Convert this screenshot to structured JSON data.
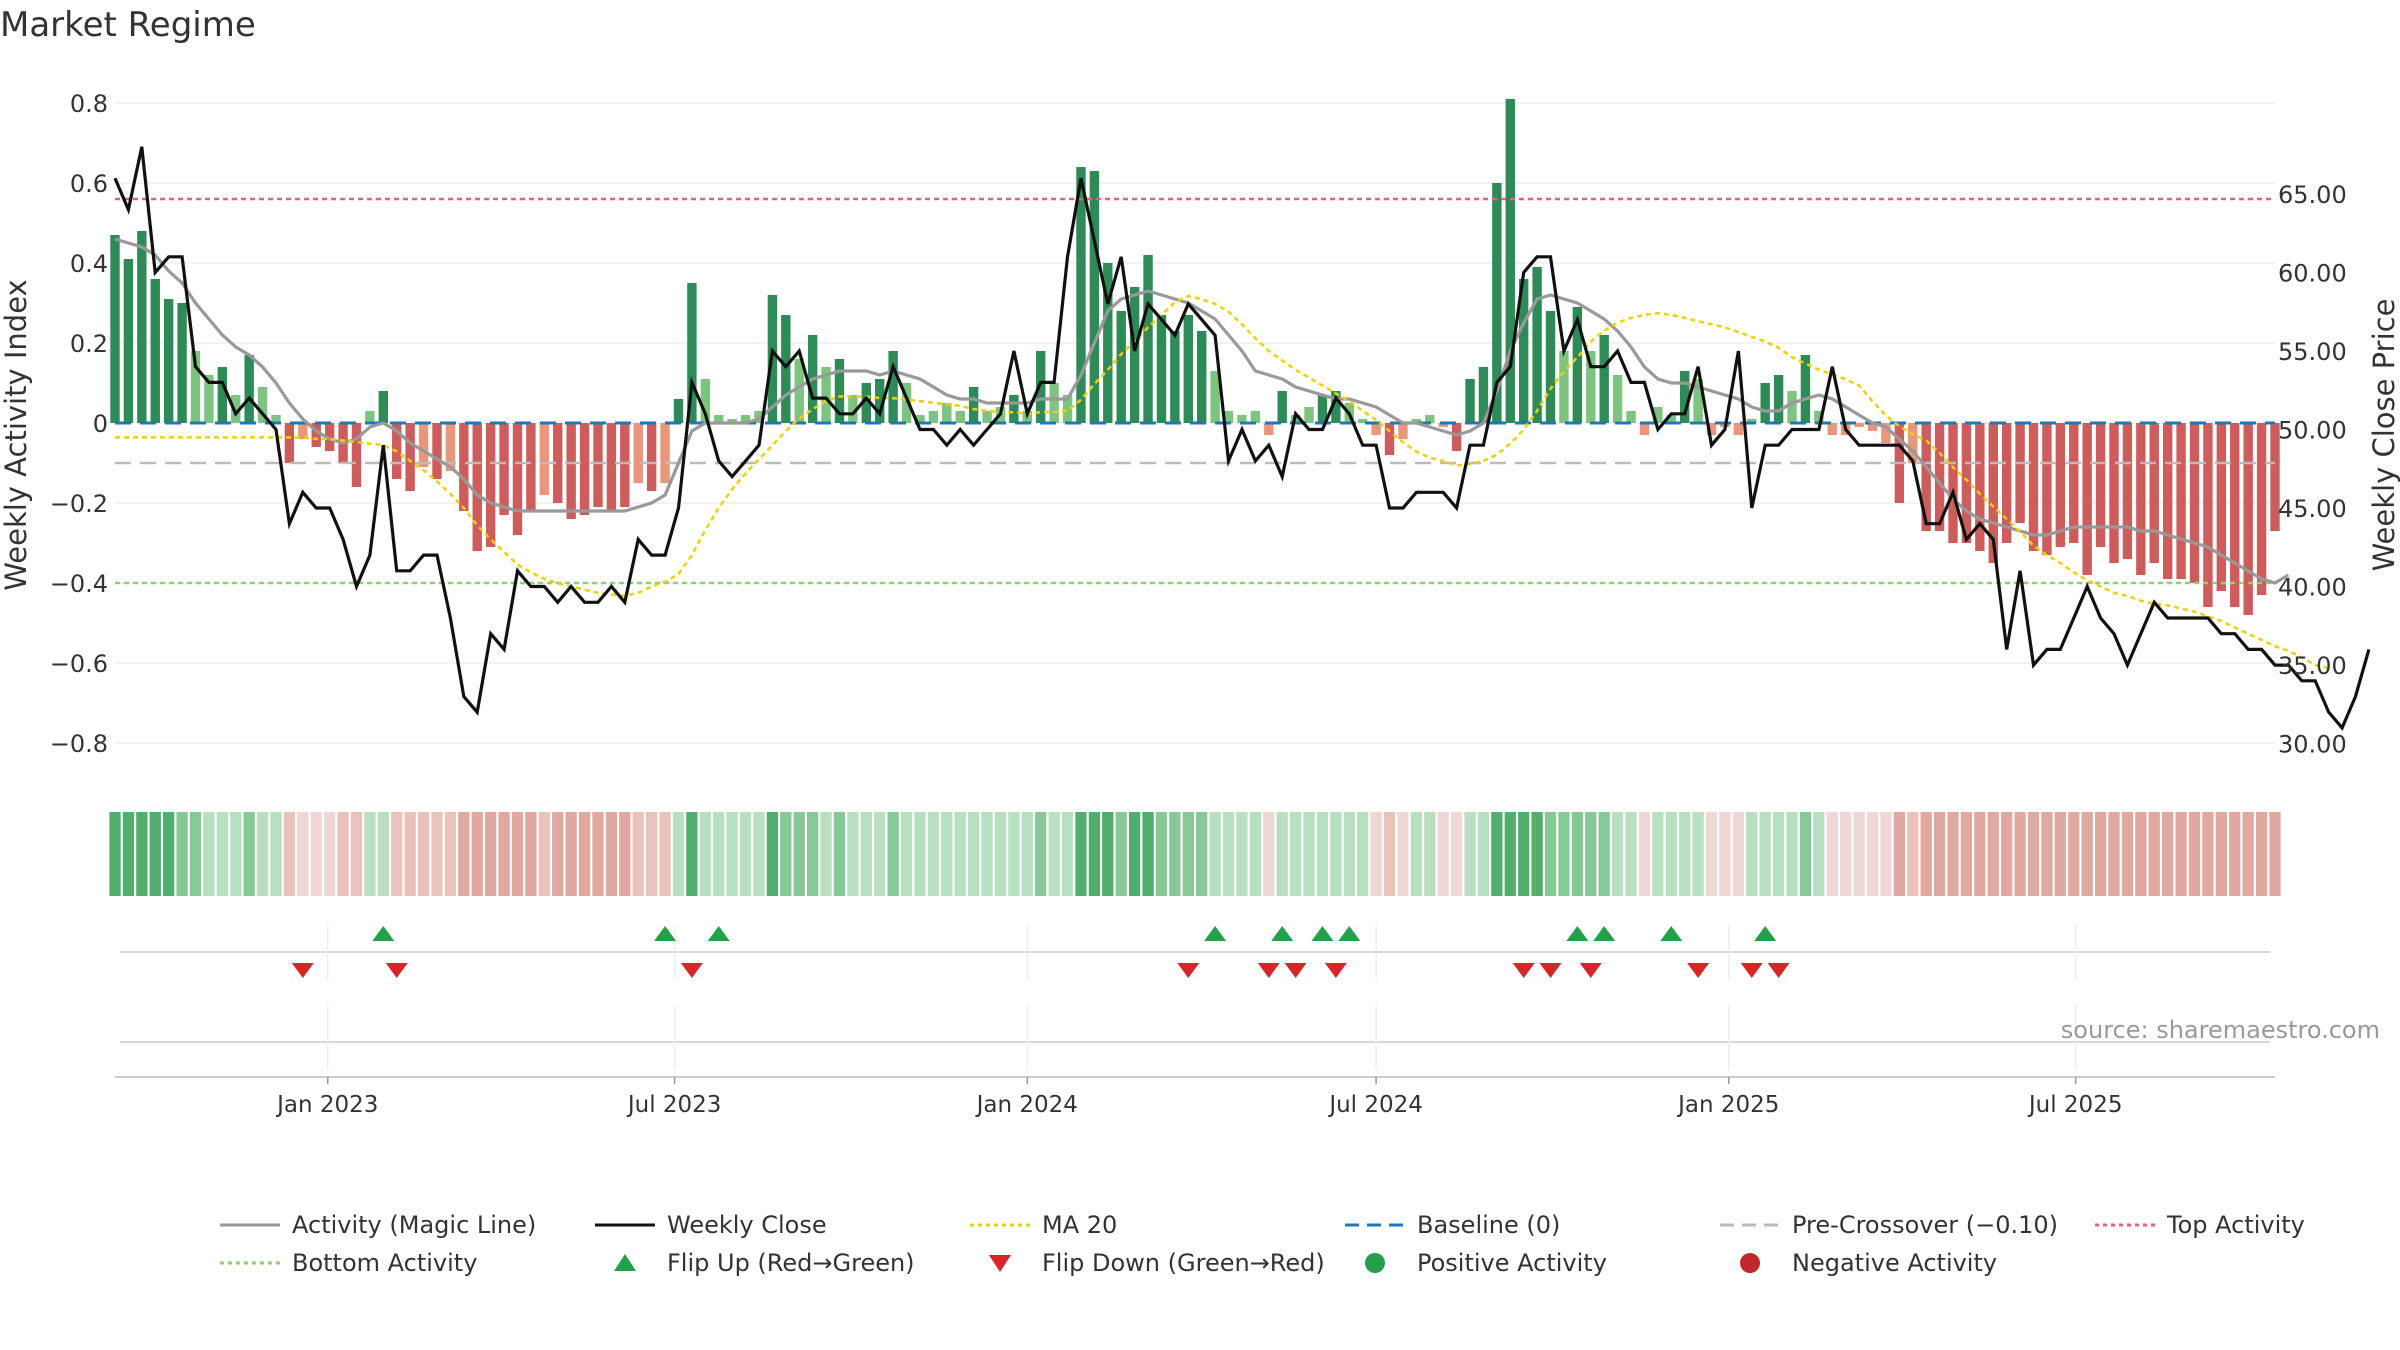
{
  "title": "Market Regime",
  "source": "source: sharemaestro.com",
  "colors": {
    "strong_green": "#2e8b57",
    "light_green": "#7cc47f",
    "strong_red": "#cd5c5c",
    "light_red": "#e9967a",
    "close": "#111111",
    "activity_line": "#999999",
    "ma20": "#f0d000",
    "baseline": "#1f77b4",
    "pre_crossover": "#bbbbbb",
    "top_activity": "#e8607a",
    "bottom_activity": "#90d070",
    "flip_up": "#22a04a",
    "flip_down": "#d62728"
  },
  "chart_data": {
    "type": "bar",
    "title": "Market Regime",
    "ylabel_left": "Weekly Activity Index",
    "ylabel_right": "Weekly Close Price",
    "xlim": [
      "2022-09-12",
      "2025-10-13"
    ],
    "ylim_left": [
      -0.88,
      0.82
    ],
    "ylim_right": [
      28.0,
      71.3
    ],
    "left_ticks": [
      {
        "v": 0.8,
        "label": "0.8"
      },
      {
        "v": 0.6,
        "label": "0.6"
      },
      {
        "v": 0.4,
        "label": "0.4"
      },
      {
        "v": 0.2,
        "label": "0.2"
      },
      {
        "v": 0,
        "label": "0"
      },
      {
        "v": -0.2,
        "label": "−0.2"
      },
      {
        "v": -0.4,
        "label": "−0.4"
      },
      {
        "v": -0.6,
        "label": "−0.6"
      },
      {
        "v": -0.8,
        "label": "−0.8"
      }
    ],
    "right_ticks": [
      {
        "v": 65,
        "label": "65.00"
      },
      {
        "v": 60,
        "label": "60.00"
      },
      {
        "v": 55,
        "label": "55.00"
      },
      {
        "v": 50,
        "label": "50.00"
      },
      {
        "v": 45,
        "label": "45.00"
      },
      {
        "v": 40,
        "label": "40.00"
      },
      {
        "v": 35,
        "label": "35.00"
      },
      {
        "v": 30,
        "label": "30.00"
      }
    ],
    "x_ticks": [
      {
        "date": "2023-01-01",
        "label": "Jan 2023"
      },
      {
        "date": "2023-07-01",
        "label": "Jul 2023"
      },
      {
        "date": "2024-01-01",
        "label": "Jan 2024"
      },
      {
        "date": "2024-07-01",
        "label": "Jul 2024"
      },
      {
        "date": "2025-01-01",
        "label": "Jan 2025"
      },
      {
        "date": "2025-07-01",
        "label": "Jul 2025"
      }
    ],
    "reference_lines": {
      "top_activity": 0.56,
      "bottom_activity": -0.4,
      "baseline": 0,
      "pre_crossover": -0.1
    },
    "start_date": "2022-09-12",
    "activity": [
      0.47,
      0.41,
      0.48,
      0.36,
      0.31,
      0.3,
      0.18,
      0.12,
      0.14,
      0.07,
      0.17,
      0.09,
      0.02,
      -0.1,
      -0.04,
      -0.06,
      -0.07,
      -0.1,
      -0.16,
      0.03,
      0.08,
      -0.14,
      -0.17,
      -0.11,
      -0.14,
      -0.12,
      -0.22,
      -0.32,
      -0.31,
      -0.23,
      -0.28,
      -0.22,
      -0.18,
      -0.2,
      -0.24,
      -0.23,
      -0.21,
      -0.22,
      -0.21,
      -0.15,
      -0.17,
      -0.15,
      0.06,
      0.35,
      0.11,
      0.02,
      0.01,
      0.02,
      0.03,
      0.32,
      0.27,
      0.16,
      0.22,
      0.14,
      0.16,
      0.07,
      0.1,
      0.11,
      0.18,
      0.1,
      0.02,
      0.03,
      0.05,
      0.03,
      0.09,
      0.03,
      0.04,
      0.07,
      0.03,
      0.18,
      0.1,
      0.07,
      0.64,
      0.63,
      0.4,
      0.28,
      0.34,
      0.42,
      0.27,
      0.23,
      0.27,
      0.23,
      0.13,
      0.03,
      0.02,
      0.03,
      -0.03,
      0.08,
      0.02,
      0.04,
      0.07,
      0.08,
      0.05,
      0.01,
      -0.03,
      -0.08,
      -0.04,
      0.01,
      0.02,
      -0.01,
      -0.07,
      0.11,
      0.14,
      0.6,
      0.81,
      0.36,
      0.39,
      0.28,
      0.18,
      0.29,
      0.18,
      0.22,
      0.12,
      0.03,
      -0.03,
      0.04,
      0.02,
      0.13,
      0.11,
      -0.03,
      -0.01,
      -0.03,
      0.01,
      0.1,
      0.12,
      0.08,
      0.17,
      0.03,
      -0.03,
      -0.03,
      -0.01,
      -0.02,
      -0.05,
      -0.2,
      -0.1,
      -0.27,
      -0.27,
      -0.3,
      -0.3,
      -0.32,
      -0.35,
      -0.3,
      -0.25,
      -0.32,
      -0.33,
      -0.31,
      -0.3,
      -0.38,
      -0.31,
      -0.35,
      -0.34,
      -0.38,
      -0.35,
      -0.39,
      -0.39,
      -0.4,
      -0.46,
      -0.42,
      -0.46,
      -0.48,
      -0.43,
      -0.27
    ],
    "close": [
      66,
      64,
      68,
      60,
      61,
      61,
      54,
      53,
      53,
      51,
      52,
      51,
      50,
      44,
      46,
      45,
      45,
      43,
      40,
      42,
      49,
      41,
      41,
      42,
      42,
      38,
      33,
      32,
      37,
      36,
      41,
      40,
      40,
      39,
      40,
      39,
      39,
      40,
      39,
      43,
      42,
      42,
      45,
      53,
      51,
      48,
      47,
      48,
      49,
      55,
      54,
      55,
      52,
      52,
      51,
      51,
      52,
      51,
      54,
      52,
      50,
      50,
      49,
      50,
      49,
      50,
      51,
      55,
      51,
      53,
      53,
      61,
      66,
      62,
      58,
      61,
      55,
      58,
      57,
      56,
      58,
      57,
      56,
      48,
      50,
      48,
      49,
      47,
      51,
      50,
      50,
      52,
      51,
      49,
      49,
      45,
      45,
      46,
      46,
      46,
      45,
      49,
      49,
      53,
      54,
      60,
      61,
      61,
      55,
      57,
      54,
      54,
      55,
      53,
      53,
      50,
      51,
      51,
      54,
      49,
      50,
      55,
      45,
      49,
      49,
      50,
      50,
      50,
      54,
      50,
      49,
      49,
      49,
      49,
      48,
      44,
      44,
      46,
      43,
      44,
      43,
      36,
      41,
      35,
      36,
      36,
      38,
      40,
      38,
      37,
      35,
      37,
      39,
      38,
      38,
      38,
      38,
      37,
      37,
      36,
      36,
      35,
      35,
      34,
      34,
      32,
      31,
      33,
      36
    ],
    "activity_line": [
      0.46,
      0.45,
      0.44,
      0.42,
      0.38,
      0.35,
      0.3,
      0.26,
      0.22,
      0.19,
      0.17,
      0.14,
      0.1,
      0.05,
      0.01,
      -0.02,
      -0.04,
      -0.05,
      -0.04,
      -0.01,
      0.0,
      -0.02,
      -0.05,
      -0.07,
      -0.09,
      -0.11,
      -0.14,
      -0.18,
      -0.2,
      -0.21,
      -0.22,
      -0.22,
      -0.22,
      -0.22,
      -0.22,
      -0.22,
      -0.22,
      -0.22,
      -0.22,
      -0.21,
      -0.2,
      -0.18,
      -0.1,
      -0.02,
      0.0,
      0.0,
      0.0,
      0.0,
      0.01,
      0.04,
      0.07,
      0.09,
      0.11,
      0.12,
      0.13,
      0.13,
      0.13,
      0.12,
      0.13,
      0.12,
      0.11,
      0.09,
      0.07,
      0.06,
      0.06,
      0.05,
      0.05,
      0.05,
      0.05,
      0.06,
      0.06,
      0.06,
      0.12,
      0.2,
      0.28,
      0.31,
      0.32,
      0.33,
      0.32,
      0.31,
      0.3,
      0.28,
      0.26,
      0.22,
      0.18,
      0.13,
      0.12,
      0.11,
      0.09,
      0.08,
      0.07,
      0.06,
      0.06,
      0.05,
      0.04,
      0.02,
      0.0,
      0.0,
      -0.01,
      -0.02,
      -0.03,
      -0.02,
      0.0,
      0.08,
      0.18,
      0.25,
      0.31,
      0.32,
      0.31,
      0.3,
      0.28,
      0.26,
      0.23,
      0.19,
      0.14,
      0.11,
      0.1,
      0.1,
      0.09,
      0.08,
      0.07,
      0.06,
      0.04,
      0.03,
      0.03,
      0.05,
      0.06,
      0.07,
      0.06,
      0.04,
      0.02,
      0.0,
      -0.01,
      -0.04,
      -0.07,
      -0.11,
      -0.15,
      -0.19,
      -0.22,
      -0.24,
      -0.25,
      -0.26,
      -0.27,
      -0.28,
      -0.28,
      -0.27,
      -0.26,
      -0.26,
      -0.26,
      -0.26,
      -0.26,
      -0.27,
      -0.27,
      -0.28,
      -0.29,
      -0.3,
      -0.31,
      -0.33,
      -0.35,
      -0.37,
      -0.39,
      -0.4,
      -0.38
    ],
    "ma20": [
      49.5,
      49.5,
      49.5,
      49.5,
      49.5,
      49.5,
      49.5,
      49.5,
      49.5,
      49.5,
      49.5,
      49.5,
      49.5,
      49.5,
      49.5,
      49.4,
      49.4,
      49.3,
      49.2,
      49.1,
      49.0,
      48.6,
      48.0,
      47.4,
      46.7,
      45.9,
      45.0,
      43.9,
      43.0,
      42.2,
      41.4,
      40.9,
      40.5,
      40.2,
      40.0,
      39.8,
      39.6,
      39.5,
      39.4,
      39.6,
      40.0,
      40.3,
      40.8,
      42.0,
      43.6,
      45.0,
      46.2,
      47.2,
      48.1,
      49.0,
      49.9,
      50.7,
      51.3,
      51.8,
      52.1,
      52.1,
      52.1,
      52.0,
      52.0,
      51.9,
      51.8,
      51.7,
      51.6,
      51.5,
      51.3,
      51.2,
      51.1,
      51.1,
      51.0,
      51.1,
      51.1,
      51.2,
      51.9,
      52.9,
      53.8,
      54.8,
      55.6,
      56.5,
      57.3,
      58.1,
      58.5,
      58.3,
      58.0,
      57.5,
      56.7,
      55.8,
      55.0,
      54.4,
      53.8,
      53.3,
      52.8,
      52.3,
      51.8,
      51.2,
      50.6,
      49.9,
      49.2,
      48.6,
      48.2,
      48.0,
      47.7,
      47.8,
      48.0,
      48.4,
      49.1,
      50.0,
      51.2,
      52.6,
      53.7,
      54.6,
      55.6,
      56.3,
      56.8,
      57.1,
      57.3,
      57.4,
      57.3,
      57.1,
      56.9,
      56.7,
      56.5,
      56.2,
      55.9,
      55.6,
      55.2,
      54.6,
      54.2,
      53.8,
      53.5,
      53.2,
      52.8,
      51.8,
      50.9,
      50.2,
      49.7,
      49.3,
      48.5,
      47.6,
      46.8,
      45.9,
      45.1,
      44.3,
      43.5,
      42.6,
      42.0,
      41.5,
      40.9,
      40.4,
      40.0,
      39.6,
      39.4,
      39.1,
      38.9,
      38.8,
      38.6,
      38.4,
      38.1,
      37.8,
      37.4,
      37.0,
      36.6,
      36.2,
      35.9,
      35.5,
      35.0,
      34.8
    ],
    "flips_up": [
      "2023-01-30",
      "2023-06-26",
      "2023-07-24",
      "2024-04-08",
      "2024-05-13",
      "2024-06-03",
      "2024-06-17",
      "2024-10-14",
      "2024-10-28",
      "2024-12-02",
      "2025-01-20"
    ],
    "flips_down": [
      "2022-12-19",
      "2023-02-06",
      "2023-07-10",
      "2024-03-25",
      "2024-05-06",
      "2024-05-20",
      "2024-06-10",
      "2024-09-16",
      "2024-09-30",
      "2024-10-21",
      "2024-12-16",
      "2025-01-13",
      "2025-01-27"
    ],
    "legend": [
      {
        "label": "Activity (Magic Line)",
        "kind": "line",
        "color": "#999999",
        "dash": ""
      },
      {
        "label": "Weekly Close",
        "kind": "line",
        "color": "#111111",
        "dash": ""
      },
      {
        "label": "MA 20",
        "kind": "line",
        "color": "#f0d000",
        "dash": "4 4"
      },
      {
        "label": "Baseline (0)",
        "kind": "line",
        "color": "#1f77b4",
        "dash": "14 8"
      },
      {
        "label": "Pre-Crossover (−0.10)",
        "kind": "line",
        "color": "#bbbbbb",
        "dash": "14 8"
      },
      {
        "label": "Top Activity",
        "kind": "line",
        "color": "#e8607a",
        "dash": "4 4"
      },
      {
        "label": "Bottom Activity",
        "kind": "line",
        "color": "#90d070",
        "dash": "4 4"
      },
      {
        "label": "Flip Up (Red→Green)",
        "kind": "tri-up",
        "color": "#22a04a",
        "dash": ""
      },
      {
        "label": "Flip Down (Green→Red)",
        "kind": "tri-down",
        "color": "#d62728",
        "dash": ""
      },
      {
        "label": "Positive Activity",
        "kind": "dot",
        "color": "#22a04a",
        "dash": ""
      },
      {
        "label": "Negative Activity",
        "kind": "dot",
        "color": "#c0282d",
        "dash": ""
      }
    ]
  }
}
